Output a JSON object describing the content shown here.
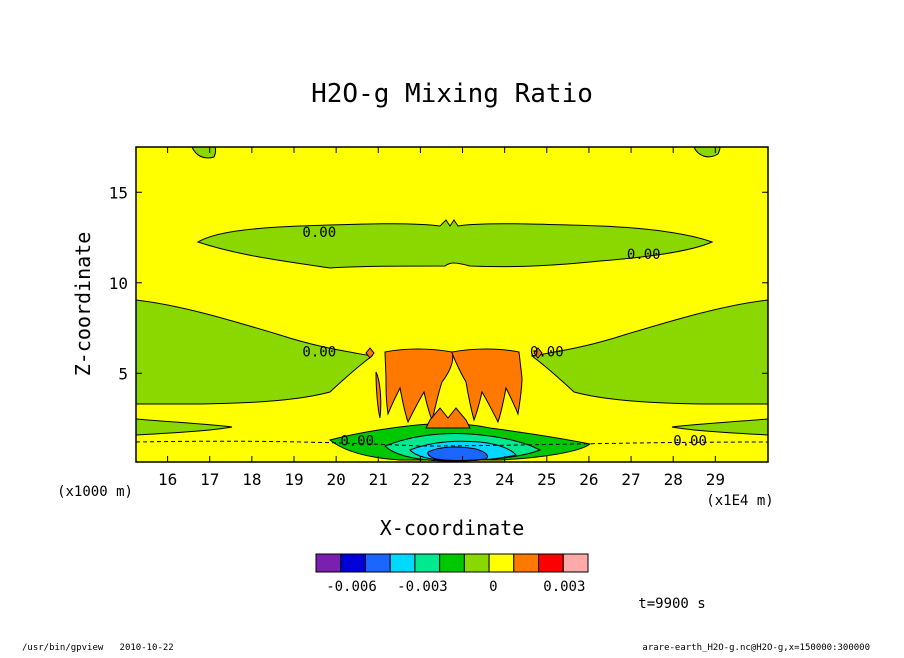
{
  "chart_data": {
    "type": "heatmap",
    "title": "H2O-g Mixing Ratio",
    "xlabel": "X-coordinate",
    "ylabel": "Z-coordinate",
    "x_unit": "(x1E4 m)",
    "y_unit": "(x1000 m)",
    "xlim": [
      15.25,
      30.25
    ],
    "ylim": [
      0.1,
      17.5
    ],
    "x_ticks": [
      16,
      17,
      18,
      19,
      20,
      21,
      22,
      23,
      24,
      25,
      26,
      27,
      28,
      29
    ],
    "y_ticks": [
      5,
      10,
      15
    ],
    "contour_labels": [
      {
        "text": "0.00",
        "x": 19.6,
        "y": 12.8
      },
      {
        "text": "0.00",
        "x": 27.3,
        "y": 11.6
      },
      {
        "text": "0.00",
        "x": 19.6,
        "y": 6.2
      },
      {
        "text": "0.00",
        "x": 25.0,
        "y": 6.2
      },
      {
        "text": "0.00",
        "x": 20.5,
        "y": 1.3
      },
      {
        "text": "0.00",
        "x": 28.4,
        "y": 1.3
      }
    ],
    "colorbar": {
      "colors": [
        "#7a1fb0",
        "#0000d8",
        "#1a66ff",
        "#00d8ff",
        "#00e890",
        "#00c800",
        "#8ad800",
        "#ffff00",
        "#ff7800",
        "#ff0000",
        "#ffaaaa"
      ],
      "tick_labels": [
        "-0.006",
        "-0.003",
        "0",
        "0.003"
      ],
      "tick_values": [
        -0.006,
        -0.003,
        0,
        0.003
      ],
      "range": [
        -0.0075,
        0.004
      ]
    },
    "regions": {
      "background_color": "#ffff00",
      "level_values": {
        "light_green": -0.0005,
        "background": 0.0,
        "orange": 0.0015,
        "blue_cyan_core": -0.004
      }
    }
  },
  "time_label": "t=9900 s",
  "footer": {
    "left": "/usr/bin/gpview   2010-10-22",
    "right": "arare-earth_H2O-g.nc@H2O-g,x=150000:300000"
  }
}
